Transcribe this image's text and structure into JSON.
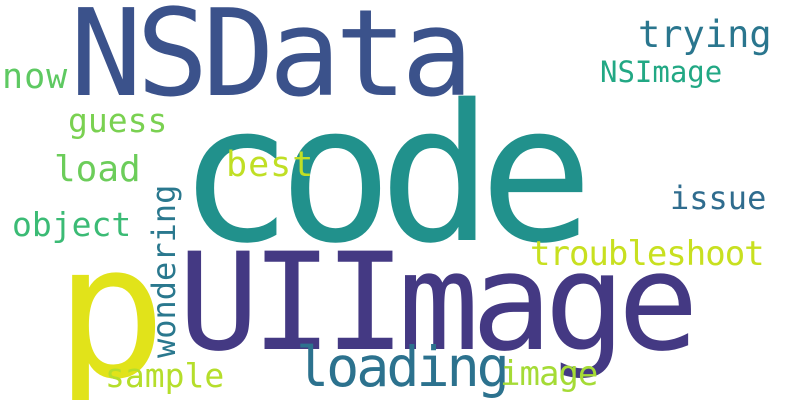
{
  "cloud": {
    "background": "#ffffff",
    "words": [
      {
        "text": "code",
        "color": "#21918c"
      },
      {
        "text": "NSData",
        "color": "#3b528b"
      },
      {
        "text": "UIImage",
        "color": "#443983"
      },
      {
        "text": "p",
        "color": "#e1e31a"
      },
      {
        "text": "loading",
        "color": "#2c728e"
      },
      {
        "text": "troubleshoot",
        "color": "#c8e020"
      },
      {
        "text": "wondering",
        "color": "#2a788e"
      },
      {
        "text": "image",
        "color": "#a5db36"
      },
      {
        "text": "sample",
        "color": "#b5de2b"
      },
      {
        "text": "NSImage",
        "color": "#22a884"
      },
      {
        "text": "trying",
        "color": "#2a768e"
      },
      {
        "text": "now",
        "color": "#5ec962"
      },
      {
        "text": "guess",
        "color": "#7ad151"
      },
      {
        "text": "load",
        "color": "#6ccd5a"
      },
      {
        "text": "best",
        "color": "#c0df25"
      },
      {
        "text": "object",
        "color": "#3bbb75"
      },
      {
        "text": "issue",
        "color": "#2f6c8e"
      }
    ]
  }
}
